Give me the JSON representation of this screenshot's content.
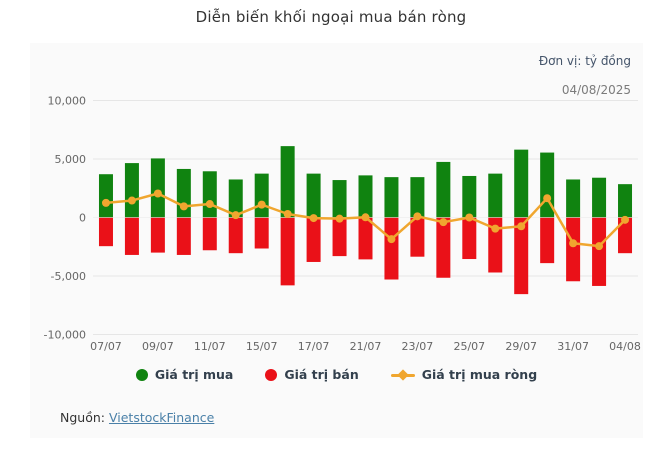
{
  "header": {
    "title": "Diễn biến khối ngoại mua bán ròng",
    "unit_label": "Đơn vị: tỷ đồng",
    "date": "04/08/2025"
  },
  "footer": {
    "source_label": "Nguồn:",
    "source_link_text": "VietstockFinance"
  },
  "colors": {
    "page_bg": "#ffffff",
    "panel_bg": "#fafafa",
    "grid": "#e6e6e6",
    "axis_text": "#666666",
    "title_text": "#333333",
    "unit_text": "#44546a",
    "date_text": "#7b7b7b",
    "legend_text": "#33404d",
    "link": "#4a80a8",
    "buy_green": "#108310",
    "sell_red": "#ea1118",
    "net_yellow": "#f0a62f"
  },
  "chart_data": {
    "type": "bar",
    "subtype": "column-with-line",
    "title": "Diễn biến khối ngoại mua bán ròng",
    "unit": "tỷ đồng",
    "grid": true,
    "legend_position": "bottom",
    "ylim": [
      -10000,
      10000
    ],
    "grid_color": "#e6e6e6",
    "axis_text_color": "#666666",
    "y_ticks": [
      {
        "value": 10000,
        "label": "10,000"
      },
      {
        "value": 5000,
        "label": "5,000"
      },
      {
        "value": 0,
        "label": "0"
      },
      {
        "value": -5000,
        "label": "-5,000"
      },
      {
        "value": -10000,
        "label": "-10,000"
      }
    ],
    "categories": [
      "07/07",
      "08/07",
      "09/07",
      "10/07",
      "11/07",
      "14/07",
      "15/07",
      "16/07",
      "17/07",
      "18/07",
      "21/07",
      "22/07",
      "23/07",
      "24/07",
      "25/07",
      "28/07",
      "29/07",
      "30/07",
      "31/07",
      "01/08",
      "04/08"
    ],
    "x_tick_labels_shown": [
      "07/07",
      "09/07",
      "11/07",
      "15/07",
      "17/07",
      "21/07",
      "23/07",
      "25/07",
      "29/07",
      "31/07",
      "04/08"
    ],
    "series": [
      {
        "name": "Giá trị mua",
        "type": "column",
        "color": "#108310",
        "values": [
          3700,
          4650,
          5050,
          4150,
          3950,
          3250,
          3750,
          6100,
          3750,
          3200,
          3600,
          3450,
          3450,
          4750,
          3550,
          3750,
          5800,
          5550,
          3250,
          3400,
          2850
        ]
      },
      {
        "name": "Giá trị bán",
        "type": "column",
        "color": "#ea1118",
        "values": [
          -2450,
          -3200,
          -3000,
          -3200,
          -2800,
          -3050,
          -2650,
          -5800,
          -3800,
          -3300,
          -3580,
          -5300,
          -3350,
          -5150,
          -3550,
          -4700,
          -6550,
          -3900,
          -5450,
          -5850,
          -3050
        ]
      },
      {
        "name": "Giá trị mua ròng",
        "type": "line",
        "color": "#f0a62f",
        "values": [
          1250,
          1450,
          2050,
          950,
          1150,
          200,
          1100,
          300,
          -50,
          -100,
          20,
          -1850,
          100,
          -400,
          0,
          -950,
          -750,
          1650,
          -2200,
          -2450,
          -200
        ]
      }
    ]
  }
}
